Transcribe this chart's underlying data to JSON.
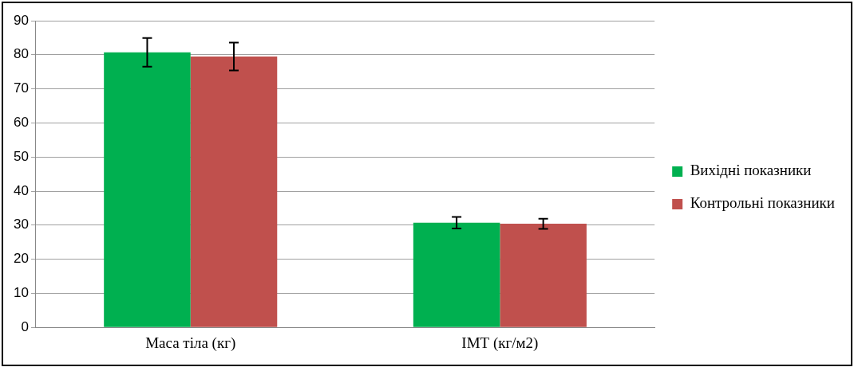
{
  "chart_data": {
    "type": "bar",
    "categories": [
      "Маса тіла (кг)",
      "ІМТ (кг/м2)"
    ],
    "series": [
      {
        "name": "Вихідні показники",
        "color": "#00b050",
        "values": [
          80.7,
          30.7
        ],
        "errors": [
          4.2,
          1.7
        ]
      },
      {
        "name": "Контрольні показники",
        "color": "#c0504d",
        "values": [
          79.5,
          30.4
        ],
        "errors": [
          4.1,
          1.5
        ]
      }
    ],
    "ylim": [
      0,
      90
    ],
    "yticks": [
      0,
      10,
      20,
      30,
      40,
      50,
      60,
      70,
      80,
      90
    ],
    "grid": "y",
    "legend": "right"
  }
}
